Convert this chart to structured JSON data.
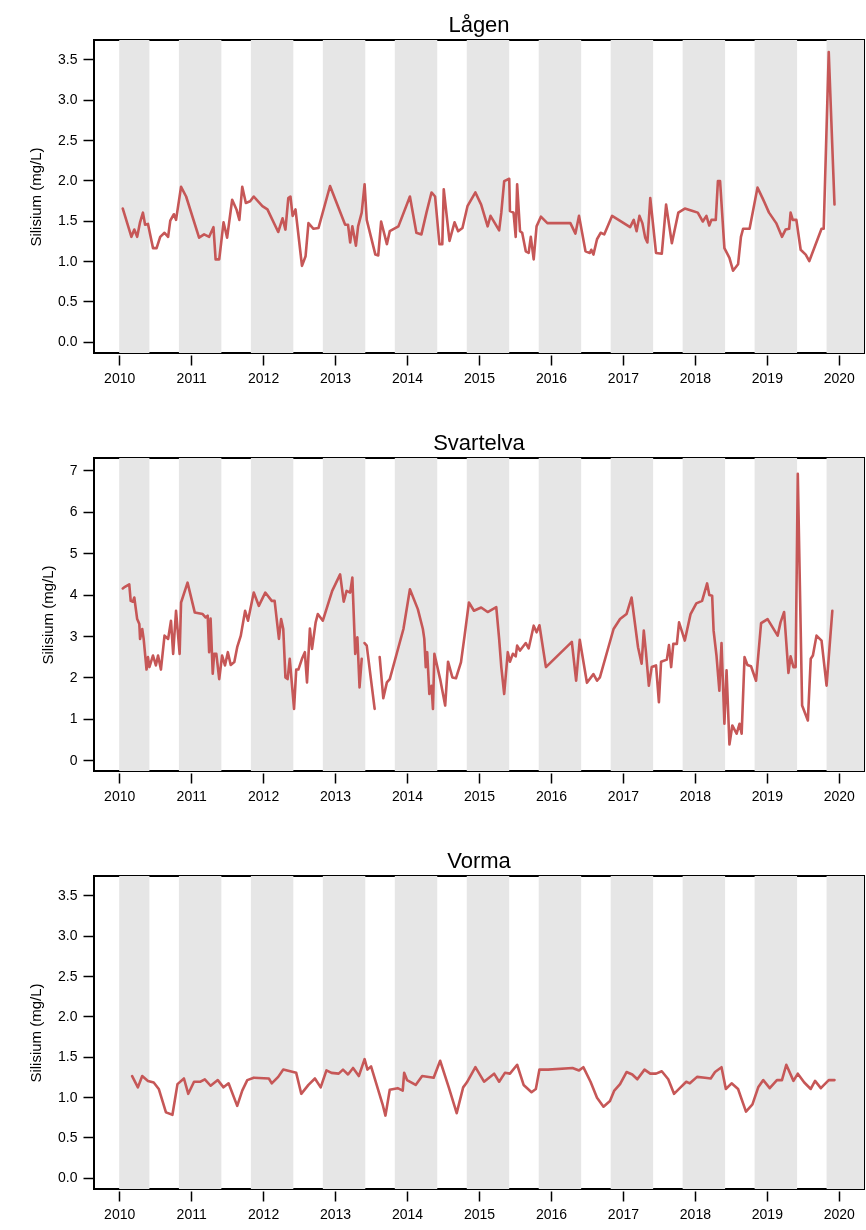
{
  "chart_data": [
    {
      "type": "line",
      "title": "Lågen",
      "ylabel": "Silisium (mg/L)",
      "xlim": [
        2009.65,
        2020.35
      ],
      "ylim": [
        -0.14,
        3.74
      ],
      "xticks": [
        2010,
        2011,
        2012,
        2013,
        2014,
        2015,
        2016,
        2017,
        2018,
        2019,
        2020
      ],
      "yticks": [
        {
          "value": 0,
          "label": "0.0"
        },
        {
          "value": 0.5,
          "label": "0.5"
        },
        {
          "value": 1,
          "label": "1.0"
        },
        {
          "value": 1.5,
          "label": "1.5"
        },
        {
          "value": 2,
          "label": "2.0"
        },
        {
          "value": 2.5,
          "label": "2.5"
        },
        {
          "value": 3,
          "label": "3.0"
        },
        {
          "value": 3.5,
          "label": "3.5"
        }
      ],
      "bands": [
        {
          "axis": "x",
          "from": 2010,
          "to": 2010.42,
          "color": "#e6e6e6"
        },
        {
          "axis": "x",
          "from": 2010.83,
          "to": 2011.42,
          "color": "#e6e6e6"
        },
        {
          "axis": "x",
          "from": 2011.83,
          "to": 2012.42,
          "color": "#e6e6e6"
        },
        {
          "axis": "x",
          "from": 2012.83,
          "to": 2013.42,
          "color": "#e6e6e6"
        },
        {
          "axis": "x",
          "from": 2013.83,
          "to": 2014.42,
          "color": "#e6e6e6"
        },
        {
          "axis": "x",
          "from": 2014.83,
          "to": 2015.42,
          "color": "#e6e6e6"
        },
        {
          "axis": "x",
          "from": 2015.83,
          "to": 2016.42,
          "color": "#e6e6e6"
        },
        {
          "axis": "x",
          "from": 2016.83,
          "to": 2017.42,
          "color": "#e6e6e6"
        },
        {
          "axis": "x",
          "from": 2017.83,
          "to": 2018.42,
          "color": "#e6e6e6"
        },
        {
          "axis": "x",
          "from": 2018.83,
          "to": 2019.42,
          "color": "#e6e6e6"
        },
        {
          "axis": "x",
          "from": 2019.83,
          "to": 2020.35,
          "color": "#e6e6e6"
        }
      ],
      "series": [
        {
          "color": "#c65757",
          "x": [
            2010.05,
            2010.17,
            2010.21,
            2010.25,
            2010.29,
            2010.33,
            2010.36,
            2010.4,
            2010.47,
            2010.52,
            2010.57,
            2010.63,
            2010.68,
            2010.71,
            2010.76,
            2010.79,
            2010.86,
            2010.93,
            2011.11,
            2011.18,
            2011.25,
            2011.31,
            2011.34,
            2011.39,
            2011.45,
            2011.5,
            2011.57,
            2011.63,
            2011.67,
            2011.71,
            2011.76,
            2011.82,
            2011.87,
            2011.99,
            2012.06,
            2012.21,
            2012.27,
            2012.31,
            2012.35,
            2012.38,
            2012.41,
            2012.45,
            2012.54,
            2012.59,
            2012.63,
            2012.7,
            2012.77,
            2012.93,
            2013.14,
            2013.18,
            2013.21,
            2013.24,
            2013.29,
            2013.32,
            2013.37,
            2013.41,
            2013.44,
            2013.56,
            2013.6,
            2013.64,
            2013.72,
            2013.76,
            2013.88,
            2014.04,
            2014.13,
            2014.2,
            2014.27,
            2014.34,
            2014.39,
            2014.45,
            2014.49,
            2014.51,
            2014.59,
            2014.66,
            2014.71,
            2014.77,
            2014.84,
            2014.95,
            2015.03,
            2015.12,
            2015.16,
            2015.22,
            2015.28,
            2015.31,
            2015.35,
            2015.42,
            2015.43,
            2015.48,
            2015.51,
            2015.53,
            2015.57,
            2015.6,
            2015.65,
            2015.69,
            2015.72,
            2015.76,
            2015.8,
            2015.86,
            2015.95,
            2016.27,
            2016.34,
            2016.39,
            2016.48,
            2016.54,
            2016.56,
            2016.59,
            2016.64,
            2016.69,
            2016.74,
            2016.85,
            2017.1,
            2017.15,
            2017.19,
            2017.23,
            2017.27,
            2017.31,
            2017.34,
            2017.38,
            2017.46,
            2017.54,
            2017.6,
            2017.68,
            2017.77,
            2017.86,
            2017.97,
            2018.04,
            2018.11,
            2018.16,
            2018.2,
            2018.23,
            2018.29,
            2018.32,
            2018.35,
            2018.41,
            2018.48,
            2018.53,
            2018.6,
            2018.64,
            2018.67,
            2018.76,
            2018.87,
            2018.94,
            2019.03,
            2019.13,
            2019.21,
            2019.26,
            2019.31,
            2019.33,
            2019.36,
            2019.41,
            2019.47,
            2019.54,
            2019.59,
            2019.76,
            2019.79,
            2019.86,
            2019.94
          ],
          "values": [
            1.65,
            1.3,
            1.39,
            1.3,
            1.48,
            1.6,
            1.45,
            1.46,
            1.16,
            1.16,
            1.3,
            1.35,
            1.3,
            1.5,
            1.58,
            1.51,
            1.92,
            1.8,
            1.29,
            1.33,
            1.3,
            1.42,
            1.02,
            1.02,
            1.48,
            1.29,
            1.76,
            1.64,
            1.51,
            1.92,
            1.72,
            1.74,
            1.8,
            1.68,
            1.64,
            1.36,
            1.53,
            1.39,
            1.78,
            1.8,
            1.56,
            1.64,
            0.94,
            1.06,
            1.47,
            1.4,
            1.41,
            1.93,
            1.45,
            1.45,
            1.23,
            1.43,
            1.19,
            1.43,
            1.6,
            1.95,
            1.51,
            1.08,
            1.07,
            1.49,
            1.21,
            1.37,
            1.43,
            1.8,
            1.35,
            1.33,
            1.6,
            1.85,
            1.8,
            1.21,
            1.21,
            1.89,
            1.25,
            1.48,
            1.37,
            1.41,
            1.68,
            1.85,
            1.7,
            1.43,
            1.56,
            1.47,
            1.38,
            1.6,
            1.99,
            2.02,
            1.62,
            1.6,
            1.3,
            1.95,
            1.37,
            1.35,
            1.12,
            1.1,
            1.3,
            1.02,
            1.43,
            1.55,
            1.47,
            1.47,
            1.34,
            1.56,
            1.12,
            1.1,
            1.14,
            1.08,
            1.27,
            1.35,
            1.33,
            1.56,
            1.42,
            1.51,
            1.37,
            1.56,
            1.47,
            1.29,
            1.23,
            1.78,
            1.1,
            1.09,
            1.7,
            1.22,
            1.6,
            1.65,
            1.62,
            1.6,
            1.49,
            1.56,
            1.44,
            1.51,
            1.51,
            1.99,
            1.99,
            1.16,
            1.04,
            0.88,
            0.96,
            1.3,
            1.4,
            1.4,
            1.91,
            1.78,
            1.6,
            1.47,
            1.3,
            1.39,
            1.4,
            1.6,
            1.51,
            1.51,
            1.14,
            1.08,
            1.0,
            1.4,
            1.4,
            3.59,
            1.7
          ]
        }
      ]
    },
    {
      "type": "line",
      "title": "Svartelva",
      "ylabel": "Silisium (mg/L)",
      "xlim": [
        2009.65,
        2020.35
      ],
      "ylim": [
        -0.26,
        7.3
      ],
      "xticks": [
        2010,
        2011,
        2012,
        2013,
        2014,
        2015,
        2016,
        2017,
        2018,
        2019,
        2020
      ],
      "yticks": [
        0,
        1,
        2,
        3,
        4,
        5,
        6,
        7
      ],
      "bands": [
        {
          "axis": "x",
          "from": 2010,
          "to": 2010.42,
          "color": "#e6e6e6"
        },
        {
          "axis": "x",
          "from": 2010.83,
          "to": 2011.42,
          "color": "#e6e6e6"
        },
        {
          "axis": "x",
          "from": 2011.83,
          "to": 2012.42,
          "color": "#e6e6e6"
        },
        {
          "axis": "x",
          "from": 2012.83,
          "to": 2013.42,
          "color": "#e6e6e6"
        },
        {
          "axis": "x",
          "from": 2013.83,
          "to": 2014.42,
          "color": "#e6e6e6"
        },
        {
          "axis": "x",
          "from": 2014.83,
          "to": 2015.42,
          "color": "#e6e6e6"
        },
        {
          "axis": "x",
          "from": 2015.83,
          "to": 2016.42,
          "color": "#e6e6e6"
        },
        {
          "axis": "x",
          "from": 2016.83,
          "to": 2017.42,
          "color": "#e6e6e6"
        },
        {
          "axis": "x",
          "from": 2017.83,
          "to": 2018.42,
          "color": "#e6e6e6"
        },
        {
          "axis": "x",
          "from": 2018.83,
          "to": 2019.42,
          "color": "#e6e6e6"
        },
        {
          "axis": "x",
          "from": 2019.83,
          "to": 2020.35,
          "color": "#e6e6e6"
        }
      ],
      "series": [
        {
          "color": "#c65757",
          "x": [
            2010.05,
            2010.08,
            2010.14,
            2010.16,
            2010.19,
            2010.21,
            2010.25,
            2010.28,
            2010.29,
            2010.32,
            2010.34,
            2010.38,
            2010.4,
            2010.42,
            2010.47,
            2010.51,
            2010.54,
            2010.58,
            2010.63,
            2010.68,
            2010.72,
            2010.75,
            2010.79,
            2010.84,
            2010.86,
            2010.95,
            2011.05,
            2011.16,
            2011.2,
            2011.23,
            2011.25,
            2011.27,
            2011.3,
            2011.32,
            2011.35,
            2011.39,
            2011.43,
            2011.47,
            2011.51,
            2011.55,
            2011.6,
            2011.64,
            2011.69,
            2011.75,
            2011.79,
            2011.87,
            2011.94,
            2012.03,
            2012.12,
            2012.16,
            2012.22,
            2012.25,
            2012.28,
            2012.31,
            2012.34,
            2012.37,
            2012.43,
            2012.46,
            2012.49,
            2012.54,
            2012.58,
            2012.61,
            2012.65,
            2012.68,
            2012.73,
            2012.76,
            2012.83,
            2012.96,
            2013.07,
            2013.12,
            2013.16,
            2013.21,
            2013.24,
            2013.28,
            2013.31,
            2013.34,
            2013.37,
            2013.39,
            2013.41,
            2013.44,
            2013.55,
            2013.585,
            2013.62,
            2013.67,
            2013.72,
            2013.76,
            2013.95,
            2014.04,
            2014.15,
            2014.22,
            2014.24,
            2014.26,
            2014.28,
            2014.31,
            2014.34,
            2014.36,
            2014.38,
            2014.46,
            2014.53,
            2014.57,
            2014.63,
            2014.68,
            2014.75,
            2014.8,
            2014.86,
            2014.93,
            2015.03,
            2015.12,
            2015.24,
            2015.28,
            2015.31,
            2015.35,
            2015.4,
            2015.43,
            2015.47,
            2015.51,
            2015.53,
            2015.57,
            2015.65,
            2015.69,
            2015.76,
            2015.8,
            2015.84,
            2015.93,
            2016.29,
            2016.35,
            2016.4,
            2016.5,
            2016.59,
            2016.64,
            2016.68,
            2016.87,
            2016.96,
            2017.05,
            2017.12,
            2017.21,
            2017.26,
            2017.29,
            2017.32,
            2017.36,
            2017.4,
            2017.46,
            2017.5,
            2017.53,
            2017.61,
            2017.64,
            2017.67,
            2017.7,
            2017.75,
            2017.78,
            2017.86,
            2017.94,
            2018.02,
            2018.1,
            2018.17,
            2018.2,
            2018.24,
            2018.26,
            2018.3,
            2018.34,
            2018.37,
            2018.41,
            2018.44,
            2018.48,
            2018.52,
            2018.58,
            2018.62,
            2018.65,
            2018.69,
            2018.73,
            2018.78,
            2018.85,
            2018.92,
            2019.01,
            2019.15,
            2019.19,
            2019.24,
            2019.3,
            2019.33,
            2019.37,
            2019.4,
            2019.43,
            2019.49,
            2019.57,
            2019.61,
            2019.64,
            2019.69,
            2019.76,
            2019.83,
            2019.91
          ],
          "values": [
            4.15,
            4.19,
            4.25,
            3.85,
            3.83,
            3.93,
            3.41,
            3.29,
            2.93,
            3.17,
            2.93,
            2.19,
            2.49,
            2.25,
            2.53,
            2.29,
            2.53,
            2.19,
            3.01,
            2.93,
            3.37,
            2.57,
            3.61,
            2.57,
            3.81,
            4.29,
            3.57,
            3.53,
            3.45,
            3.49,
            2.61,
            3.42,
            2.09,
            2.57,
            2.57,
            1.96,
            2.53,
            2.29,
            2.61,
            2.3,
            2.37,
            2.73,
            3.01,
            3.61,
            3.37,
            4.05,
            3.73,
            4.05,
            3.85,
            3.85,
            2.93,
            3.41,
            3.17,
            2.0,
            1.96,
            2.45,
            1.24,
            2.19,
            2.19,
            2.45,
            2.61,
            1.88,
            3.18,
            2.69,
            3.33,
            3.53,
            3.37,
            4.09,
            4.49,
            3.83,
            4.09,
            4.05,
            4.41,
            2.57,
            2.97,
            1.76,
            2.45,
            null,
            2.83,
            2.77,
            1.24,
            null,
            2.49,
            1.5,
            1.88,
            1.96,
            3.17,
            4.13,
            3.65,
            3.17,
            2.93,
            2.25,
            2.61,
            1.6,
            1.8,
            1.24,
            2.57,
            1.96,
            1.32,
            2.38,
            2.0,
            1.98,
            2.37,
            3.01,
            3.81,
            3.61,
            3.69,
            3.58,
            3.7,
            2.93,
            2.25,
            1.6,
            2.61,
            2.38,
            2.57,
            2.51,
            2.77,
            2.65,
            2.83,
            2.7,
            3.25,
            3.09,
            3.26,
            2.25,
            2.86,
            1.92,
            2.91,
            1.87,
            2.08,
            1.92,
            2.0,
            3.17,
            3.41,
            3.53,
            3.93,
            2.73,
            2.33,
            3.13,
            2.61,
            1.8,
            2.25,
            2.29,
            1.4,
            2.38,
            2.43,
            2.78,
            2.25,
            2.81,
            2.81,
            3.33,
            2.89,
            3.53,
            3.79,
            3.85,
            4.27,
            3.99,
            3.97,
            3.13,
            2.53,
            1.68,
            2.83,
            0.88,
            2.17,
            0.38,
            0.84,
            0.64,
            0.88,
            0.64,
            2.49,
            2.3,
            2.27,
            1.92,
            3.31,
            3.41,
            3.01,
            3.33,
            3.58,
            2.11,
            2.51,
            2.25,
            2.25,
            6.92,
            1.32,
            0.96,
            2.45,
            2.53,
            3.01,
            2.89,
            1.8,
            3.61
          ]
        }
      ]
    },
    {
      "type": "line",
      "title": "Vorma",
      "ylabel": "Silisium (mg/L)",
      "xlim": [
        2009.65,
        2020.35
      ],
      "ylim": [
        -0.14,
        3.74
      ],
      "xticks": [
        2010,
        2011,
        2012,
        2013,
        2014,
        2015,
        2016,
        2017,
        2018,
        2019,
        2020
      ],
      "yticks": [
        {
          "value": 0,
          "label": "0.0"
        },
        {
          "value": 0.5,
          "label": "0.5"
        },
        {
          "value": 1,
          "label": "1.0"
        },
        {
          "value": 1.5,
          "label": "1.5"
        },
        {
          "value": 2,
          "label": "2.0"
        },
        {
          "value": 2.5,
          "label": "2.5"
        },
        {
          "value": 3,
          "label": "3.0"
        },
        {
          "value": 3.5,
          "label": "3.5"
        }
      ],
      "bands": [
        {
          "axis": "x",
          "from": 2010,
          "to": 2010.42,
          "color": "#e6e6e6"
        },
        {
          "axis": "x",
          "from": 2010.83,
          "to": 2011.42,
          "color": "#e6e6e6"
        },
        {
          "axis": "x",
          "from": 2011.83,
          "to": 2012.42,
          "color": "#e6e6e6"
        },
        {
          "axis": "x",
          "from": 2012.83,
          "to": 2013.42,
          "color": "#e6e6e6"
        },
        {
          "axis": "x",
          "from": 2013.83,
          "to": 2014.42,
          "color": "#e6e6e6"
        },
        {
          "axis": "x",
          "from": 2014.83,
          "to": 2015.42,
          "color": "#e6e6e6"
        },
        {
          "axis": "x",
          "from": 2015.83,
          "to": 2016.42,
          "color": "#e6e6e6"
        },
        {
          "axis": "x",
          "from": 2016.83,
          "to": 2017.42,
          "color": "#e6e6e6"
        },
        {
          "axis": "x",
          "from": 2017.83,
          "to": 2018.42,
          "color": "#e6e6e6"
        },
        {
          "axis": "x",
          "from": 2018.83,
          "to": 2019.42,
          "color": "#e6e6e6"
        },
        {
          "axis": "x",
          "from": 2019.83,
          "to": 2020.35,
          "color": "#e6e6e6"
        }
      ],
      "series": [
        {
          "color": "#c65757",
          "x": [
            2010.18,
            2010.26,
            2010.32,
            2010.4,
            2010.48,
            2010.55,
            2010.65,
            2010.74,
            2010.81,
            2010.9,
            2010.96,
            2011.04,
            2011.13,
            2011.19,
            2011.27,
            2011.37,
            2011.45,
            2011.52,
            2011.64,
            2011.71,
            2011.78,
            2011.87,
            2012.08,
            2012.12,
            2012.21,
            2012.28,
            2012.46,
            2012.53,
            2012.63,
            2012.72,
            2012.8,
            2012.88,
            2012.95,
            2013.05,
            2013.11,
            2013.18,
            2013.25,
            2013.33,
            2013.41,
            2013.45,
            2013.5,
            2013.66,
            2013.7,
            2013.76,
            2013.87,
            2013.94,
            2013.96,
            2014.0,
            2014.12,
            2014.21,
            2014.37,
            2014.46,
            2014.58,
            2014.69,
            2014.78,
            2014.83,
            2014.95,
            2015.07,
            2015.21,
            2015.28,
            2015.36,
            2015.43,
            2015.53,
            2015.62,
            2015.73,
            2015.79,
            2015.84,
            2015.96,
            2016.3,
            2016.39,
            2016.45,
            2016.55,
            2016.64,
            2016.73,
            2016.82,
            2016.88,
            2016.96,
            2017.05,
            2017.13,
            2017.2,
            2017.3,
            2017.38,
            2017.46,
            2017.54,
            2017.63,
            2017.71,
            2017.79,
            2017.88,
            2017.93,
            2018.03,
            2018.14,
            2018.22,
            2018.28,
            2018.37,
            2018.43,
            2018.51,
            2018.6,
            2018.71,
            2018.8,
            2018.88,
            2018.95,
            2019.04,
            2019.14,
            2019.21,
            2019.27,
            2019.37,
            2019.43,
            2019.52,
            2019.61,
            2019.67,
            2019.75,
            2019.86,
            2019.94
          ],
          "values": [
            1.26,
            1.12,
            1.26,
            1.2,
            1.18,
            1.1,
            0.81,
            0.78,
            1.16,
            1.23,
            1.04,
            1.19,
            1.19,
            1.22,
            1.14,
            1.21,
            1.12,
            1.17,
            0.89,
            1.08,
            1.21,
            1.24,
            1.23,
            1.17,
            1.25,
            1.34,
            1.3,
            1.04,
            1.15,
            1.23,
            1.12,
            1.33,
            1.3,
            1.29,
            1.34,
            1.28,
            1.36,
            1.26,
            1.47,
            1.34,
            1.38,
            0.91,
            0.77,
            1.09,
            1.11,
            1.08,
            1.3,
            1.21,
            1.15,
            1.26,
            1.24,
            1.45,
            1.12,
            0.8,
            1.12,
            1.18,
            1.37,
            1.19,
            1.29,
            1.19,
            1.3,
            1.29,
            1.4,
            1.15,
            1.06,
            1.1,
            1.34,
            1.34,
            1.36,
            1.33,
            1.37,
            1.19,
            0.99,
            0.88,
            0.95,
            1.08,
            1.16,
            1.31,
            1.28,
            1.22,
            1.34,
            1.29,
            1.29,
            1.32,
            1.22,
            1.04,
            1.11,
            1.19,
            1.17,
            1.25,
            1.24,
            1.23,
            1.31,
            1.37,
            1.1,
            1.17,
            1.1,
            0.82,
            0.91,
            1.12,
            1.21,
            1.11,
            1.21,
            1.21,
            1.4,
            1.2,
            1.29,
            1.18,
            1.1,
            1.2,
            1.11,
            1.21,
            1.21
          ]
        }
      ]
    }
  ]
}
